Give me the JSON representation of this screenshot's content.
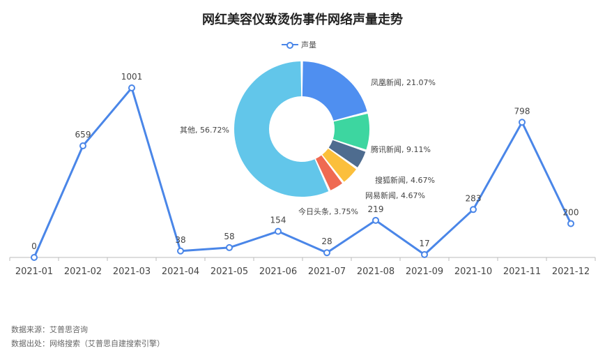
{
  "chart_data": [
    {
      "type": "line",
      "title": "网红美容仪致烫伤事件网络声量走势",
      "categories": [
        "2021-01",
        "2021-02",
        "2021-03",
        "2021-04",
        "2021-05",
        "2021-06",
        "2021-07",
        "2021-08",
        "2021-09",
        "2021-10",
        "2021-11",
        "2021-12"
      ],
      "series": [
        {
          "name": "声量",
          "values": [
            0,
            659,
            1001,
            38,
            58,
            154,
            28,
            219,
            17,
            283,
            798,
            200
          ]
        }
      ],
      "ylim": [
        0,
        1100
      ],
      "grid": false,
      "legend": "top-center",
      "color": "#4a86e8"
    },
    {
      "type": "pie",
      "donut": true,
      "slices": [
        {
          "label": "凤凰新闻, 21.07%",
          "value": 21.07,
          "color": "#4f8ff0"
        },
        {
          "label": "腾讯新闻, 9.11%",
          "value": 9.11,
          "color": "#3dd6a0"
        },
        {
          "label": "搜狐新闻, 4.67%",
          "value": 4.67,
          "color": "#4e6c8f"
        },
        {
          "label": "网易新闻, 4.67%",
          "value": 4.67,
          "color": "#fbbf3c"
        },
        {
          "label": "今日头条, 3.75%",
          "value": 3.75,
          "color": "#ef6a52"
        },
        {
          "label": "其他, 56.72%",
          "value": 56.72,
          "color": "#62c6ea"
        }
      ]
    }
  ],
  "footer": {
    "source": "数据来源：艾普思咨询",
    "output": "数据出处：网络搜索（艾普思自建搜索引擎）"
  }
}
